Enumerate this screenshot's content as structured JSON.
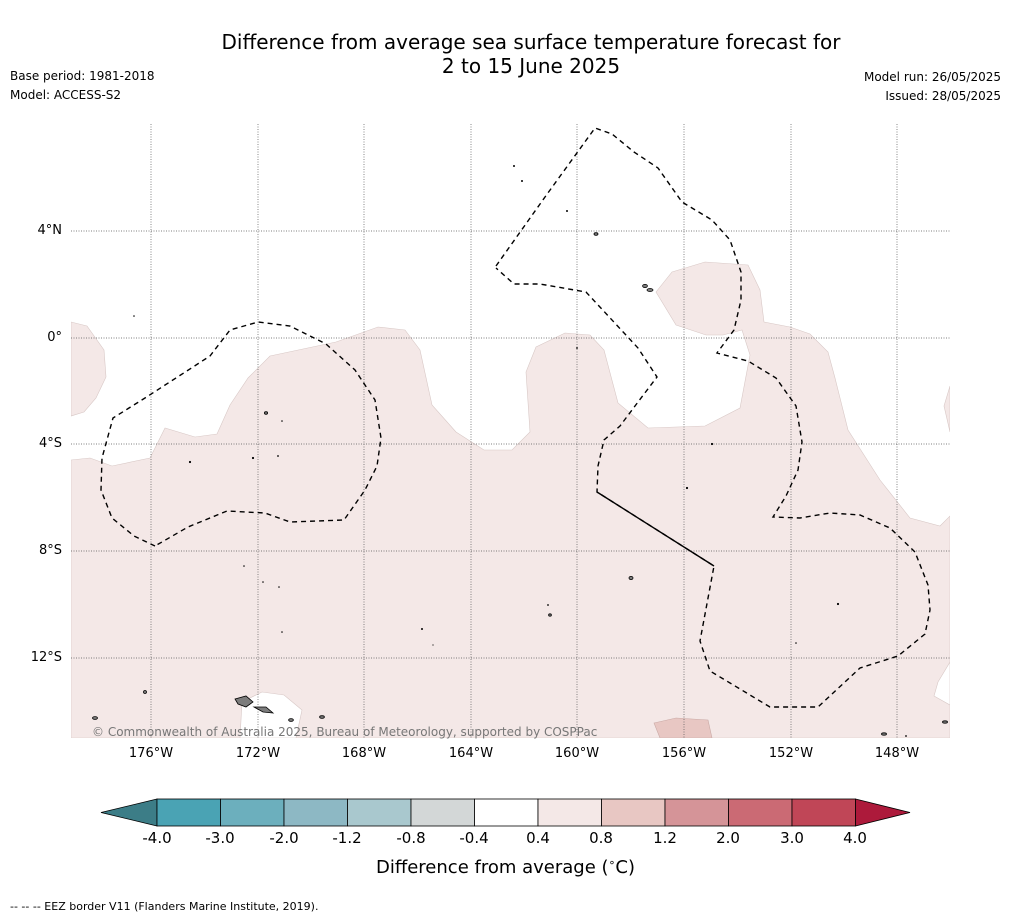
{
  "header": {
    "title_line1": "Difference from average sea surface temperature forecast for",
    "title_line2": "2 to 15 June 2025",
    "base_period": "Base period: 1981-2018",
    "model": "Model: ACCESS-S2",
    "model_run": "Model run: 26/05/2025",
    "issued": "Issued: 28/05/2025"
  },
  "map": {
    "lat_labels": [
      "4°N",
      "0°",
      "4°S",
      "8°S",
      "12°S"
    ],
    "lon_labels": [
      "176°W",
      "172°W",
      "168°W",
      "164°W",
      "160°W",
      "156°W",
      "152°W",
      "148°W"
    ],
    "copyright": "© Commonwealth of Australia 2025, Bureau of Meteorology, supported by COSPPac",
    "colors": {
      "ocean_zero": "#ffffff",
      "anomaly_0_4_to_0_8": "#f4e8e7",
      "anomaly_0_8_to_1_2": "#e8c7c3",
      "land": "#808080",
      "eez_border": "#000000"
    }
  },
  "colorbar": {
    "ticks": [
      "-4.0",
      "-3.0",
      "-2.0",
      "-1.2",
      "-0.8",
      "-0.4",
      "0.4",
      "0.8",
      "1.2",
      "2.0",
      "3.0",
      "4.0"
    ],
    "colors": [
      "#3c7d87",
      "#4aa3b4",
      "#6cafbd",
      "#8db8c4",
      "#a9c8ce",
      "#d3d7d7",
      "#ffffff",
      "#f4e8e7",
      "#e8c7c3",
      "#d59498",
      "#cb6a74",
      "#c04657",
      "#ad1a3b"
    ],
    "title": "Difference from average (",
    "title_unit_deg": "∘",
    "title_unit": "C)"
  },
  "footnote": "--  --  -- EEZ border V11 (Flanders Marine Institute, 2019)."
}
